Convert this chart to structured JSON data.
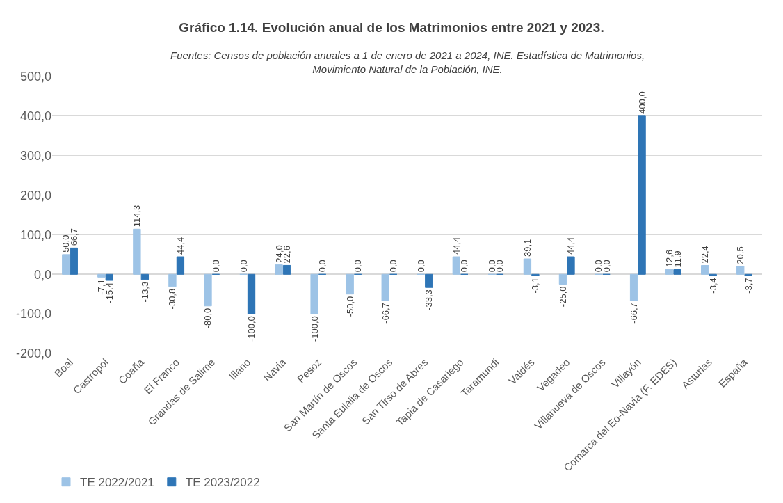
{
  "chart_data": {
    "type": "bar",
    "title": "Gráfico 1.14. Evolución anual de los Matrimonios entre 2021 y 2023.",
    "subtitle": "Fuentes: Censos de población anuales a 1 de enero de 2021 a 2024, INE. Estadística de Matrimonios,\nMovimiento Natural de la Población, INE.",
    "categories": [
      "Boal",
      "Castropol",
      "Coaña",
      "El Franco",
      "Grandas de Salime",
      "Illano",
      "Navia",
      "Pesoz",
      "San Martín de Oscos",
      "Santa Eulalia de Oscos",
      "San Tirso de Abres",
      "Tapia de Casariego",
      "Taramundi",
      "Valdés",
      "Vegadeo",
      "Villanueva de Oscos",
      "Villayón",
      "Comarca del Eo-Navia (F. EDES)",
      "Asturias",
      "España"
    ],
    "series": [
      {
        "name": "TE 2022/2021",
        "color": "#9dc3e6",
        "values": [
          50.0,
          -7.1,
          114.3,
          -30.8,
          -80.0,
          0.0,
          24.0,
          -100.0,
          -50.0,
          -66.7,
          0.0,
          44.4,
          0.0,
          39.1,
          -25.0,
          0.0,
          -66.7,
          12.6,
          22.4,
          20.5
        ],
        "value_labels": [
          "50,0",
          "-7,1",
          "114,3",
          "-30,8",
          "-80,0",
          "0,0",
          "24,0",
          "-100,0",
          "-50,0",
          "-66,7",
          "0,0",
          "44,4",
          "0,0",
          "39,1",
          "-25,0",
          "0,0",
          "-66,7",
          "12,6",
          "22,4",
          "20,5"
        ]
      },
      {
        "name": "TE 2023/2022",
        "color": "#2e75b6",
        "values": [
          66.7,
          -15.4,
          -13.3,
          44.4,
          0.0,
          -100.0,
          22.6,
          0.0,
          0.0,
          0.0,
          -33.3,
          0.0,
          0.0,
          -3.1,
          44.4,
          0.0,
          400.0,
          11.9,
          -3.4,
          -3.7
        ],
        "value_labels": [
          "66,7",
          "-15,4",
          "-13,3",
          "44,4",
          "0,0",
          "-100,0",
          "22,6",
          "0,0",
          "0,0",
          "0,0",
          "-33,3",
          "0,0",
          "0,0",
          "-3,1",
          "44,4",
          "0,0",
          "400,0",
          "11,9",
          "-3,4",
          "-3,7"
        ]
      }
    ],
    "ylim": [
      -200,
      500
    ],
    "yticks": [
      {
        "value": -200,
        "label": "-200,0"
      },
      {
        "value": -100,
        "label": "-100,0"
      },
      {
        "value": 0,
        "label": "0,0"
      },
      {
        "value": 100,
        "label": "100,0"
      },
      {
        "value": 200,
        "label": "200,0"
      },
      {
        "value": 300,
        "label": "300,0"
      },
      {
        "value": 400,
        "label": "400,0"
      },
      {
        "value": 500,
        "label": "500,0"
      }
    ],
    "grid": "y",
    "legend": "bottom left"
  }
}
